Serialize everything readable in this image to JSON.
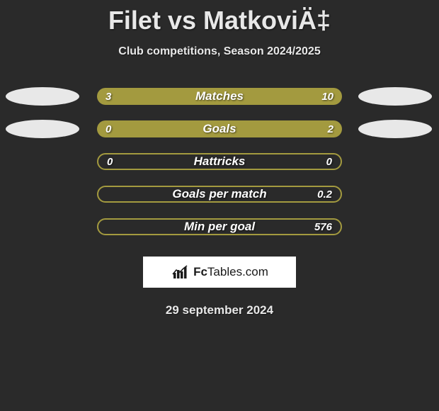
{
  "title": "Filet vs MatkoviÄ‡",
  "subtitle": "Club competitions, Season 2024/2025",
  "date": "29 september 2024",
  "logo": {
    "brand_bold": "Fc",
    "brand_rest": "Tables",
    "brand_suffix": ".com"
  },
  "colors": {
    "left_fill": "#a39a3f",
    "right_fill": "#a39a3f",
    "track": "#2a2a2a",
    "ellipse": "#e8e8e8",
    "text": "#ffffff",
    "bg": "#2a2a2a"
  },
  "rows": [
    {
      "label": "Matches",
      "left_value": "3",
      "right_value": "10",
      "left_pct": 23,
      "right_pct": 77,
      "show_left_ellipse": true,
      "show_right_ellipse": true,
      "full_fill": true
    },
    {
      "label": "Goals",
      "left_value": "0",
      "right_value": "2",
      "left_pct": 0,
      "right_pct": 20,
      "show_left_ellipse": true,
      "show_right_ellipse": true,
      "full_fill": true
    },
    {
      "label": "Hattricks",
      "left_value": "0",
      "right_value": "0",
      "left_pct": 0,
      "right_pct": 0,
      "show_left_ellipse": false,
      "show_right_ellipse": false,
      "full_fill": false
    },
    {
      "label": "Goals per match",
      "left_value": "",
      "right_value": "0.2",
      "left_pct": 0,
      "right_pct": 0,
      "show_left_ellipse": false,
      "show_right_ellipse": false,
      "full_fill": false
    },
    {
      "label": "Min per goal",
      "left_value": "",
      "right_value": "576",
      "left_pct": 0,
      "right_pct": 0,
      "show_left_ellipse": false,
      "show_right_ellipse": false,
      "full_fill": false
    }
  ]
}
